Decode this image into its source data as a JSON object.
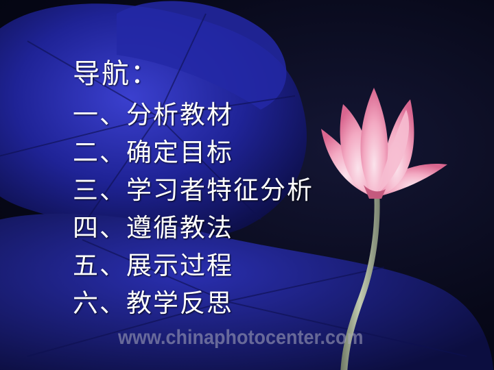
{
  "slide": {
    "title": "导航：",
    "items": [
      "一、分析教材",
      "二、确定目标",
      "三、学习者特征分析",
      "四、遵循教法",
      "五、展示过程",
      "六、教学反思"
    ],
    "watermark": "www.chinaphotocenter.com"
  },
  "colors": {
    "background": "#05061a",
    "leaf": "#1c1f8c",
    "leaf_highlight": "#3a3fd0",
    "lotus_petal": "#f4a9c0",
    "lotus_tip": "#e06a92",
    "stem": "#a8b39a",
    "text": "#ffffff"
  }
}
